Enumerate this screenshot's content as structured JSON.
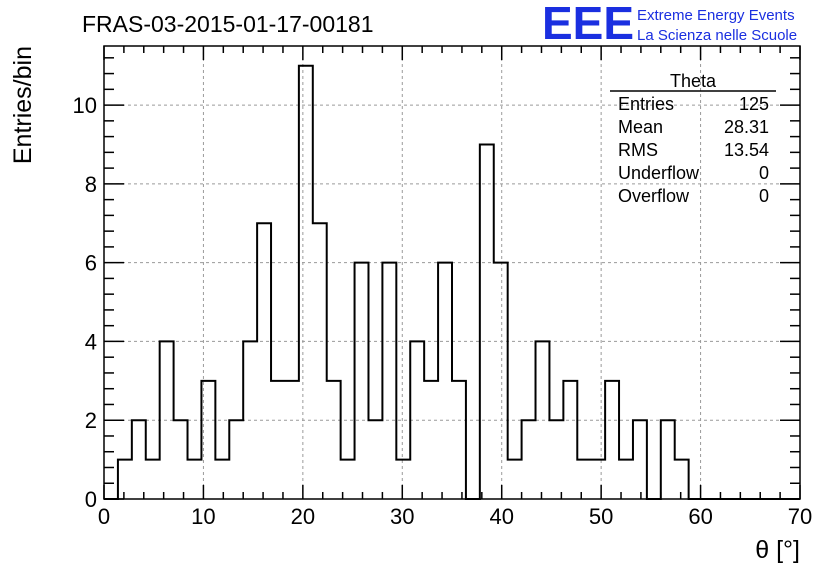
{
  "title": "FRAS-03-2015-01-17-00181",
  "logo": {
    "mark": "EEE",
    "line1": "Extreme Energy Events",
    "line2": "La Scienza nelle Scuole",
    "color": "#1a2fe0"
  },
  "stats": {
    "name": "Theta",
    "rows": [
      {
        "label": "Entries",
        "value": "125"
      },
      {
        "label": "Mean",
        "value": "28.31"
      },
      {
        "label": "RMS",
        "value": "13.54"
      },
      {
        "label": "Underflow",
        "value": "0"
      },
      {
        "label": "Overflow",
        "value": "0"
      }
    ]
  },
  "chart_data": {
    "type": "histogram",
    "xlabel": "θ [°]",
    "ylabel": "Entries/bin",
    "xlim": [
      0,
      70
    ],
    "ylim": [
      0,
      11.5
    ],
    "xticks": [
      0,
      10,
      20,
      30,
      40,
      50,
      60,
      70
    ],
    "yticks": [
      0,
      2,
      4,
      6,
      8,
      10
    ],
    "grid": true,
    "bin_width": 1.4,
    "bin_edges_start": 0,
    "values": [
      0,
      1,
      2,
      1,
      4,
      2,
      1,
      3,
      1,
      2,
      4,
      7,
      3,
      3,
      11,
      7,
      3,
      1,
      6,
      2,
      6,
      1,
      4,
      3,
      6,
      3,
      0,
      9,
      6,
      1,
      2,
      4,
      2,
      3,
      1,
      1,
      3,
      1,
      2,
      0,
      2,
      1,
      0,
      0,
      0,
      0,
      0,
      0,
      0,
      0
    ]
  }
}
